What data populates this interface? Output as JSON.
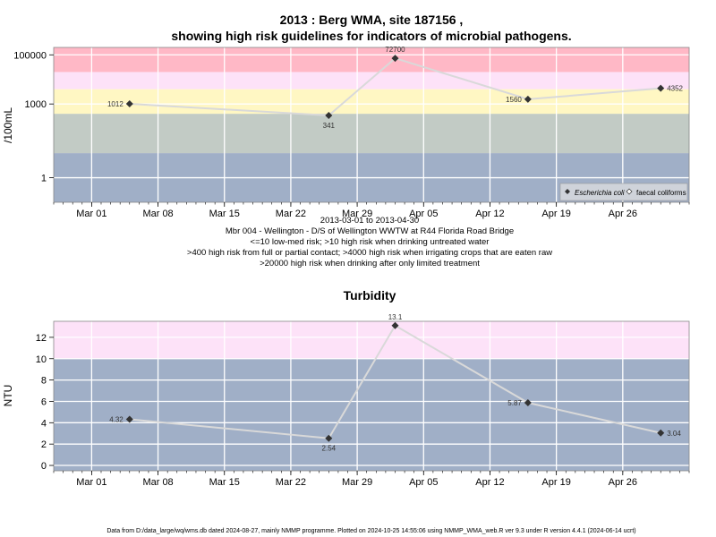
{
  "chart_data": [
    {
      "type": "line",
      "title_line1": "2013 : Berg WMA, site 187156 ,",
      "title_line2": "showing high risk guidelines for indicators of microbial pathogens.",
      "ylabel": "/100mL",
      "y_scale": "log10",
      "ylim": [
        0.1,
        200000
      ],
      "y_ticks": [
        1,
        1000,
        100000
      ],
      "y_tick_labels": [
        "1",
        "1000",
        "100000"
      ],
      "x_ticks": [
        "2013-03-01",
        "2013-03-08",
        "2013-03-15",
        "2013-03-22",
        "2013-03-29",
        "2013-04-05",
        "2013-04-12",
        "2013-04-19",
        "2013-04-26"
      ],
      "x_tick_labels": [
        "Mar 01",
        "Mar 08",
        "Mar 15",
        "Mar 22",
        "Mar 29",
        "Apr 05",
        "Apr 12",
        "Apr 19",
        "Apr 26"
      ],
      "xlim": [
        "2013-02-25",
        "2013-05-03"
      ],
      "grid": true,
      "bands": [
        {
          "from": 0.1,
          "to": 10,
          "color": "#a0afc7"
        },
        {
          "from": 10,
          "to": 400,
          "color": "#c2cbc5"
        },
        {
          "from": 400,
          "to": 4000,
          "color": "#fff7c3"
        },
        {
          "from": 4000,
          "to": 20000,
          "color": "#fde2f8"
        },
        {
          "from": 20000,
          "to": 200000,
          "color": "#ffb8c6"
        }
      ],
      "series": [
        {
          "name": "Escherichia coli",
          "color": "#333333",
          "line_color": "#d9d9d9",
          "marker": "diamond",
          "points": [
            {
              "date": "2013-03-05",
              "value": 1012,
              "label": "1012",
              "label_pos": "left"
            },
            {
              "date": "2013-03-26",
              "value": 341,
              "label": "341",
              "label_pos": "below"
            },
            {
              "date": "2013-04-02",
              "value": 72700,
              "label": "72700",
              "label_pos": "above"
            },
            {
              "date": "2013-04-16",
              "value": 1560,
              "label": "1560",
              "label_pos": "left"
            },
            {
              "date": "2013-04-30",
              "value": 4352,
              "label": "4352",
              "label_pos": "right"
            }
          ]
        }
      ],
      "legend": {
        "position": "bottom-right",
        "entries": [
          {
            "label": "Escherichia coli",
            "marker": "diamond-filled",
            "italic": true
          },
          {
            "label": "faecal coliforms",
            "marker": "diamond-open",
            "italic": false
          }
        ]
      },
      "caption_lines": [
        "2013-03-01 to 2013-04-30",
        "Mbr 004 - Wellington - D/S of Wellington WWTW at R44 Florida Road Bridge",
        "<=10 low-med risk; >10 high risk when drinking untreated water",
        ">400 high risk from full or partial contact; >4000 high risk when irrigating crops that are eaten raw",
        ">20000 high risk when drinking after only limited treatment"
      ]
    },
    {
      "type": "line",
      "title": "Turbidity",
      "ylabel": "NTU",
      "ylim": [
        -0.5,
        13.5
      ],
      "y_ticks": [
        0,
        2,
        4,
        6,
        8,
        10,
        12
      ],
      "y_tick_labels": [
        "0",
        "2",
        "4",
        "6",
        "8",
        "10",
        "12"
      ],
      "x_ticks": [
        "2013-03-01",
        "2013-03-08",
        "2013-03-15",
        "2013-03-22",
        "2013-03-29",
        "2013-04-05",
        "2013-04-12",
        "2013-04-19",
        "2013-04-26"
      ],
      "x_tick_labels": [
        "Mar 01",
        "Mar 08",
        "Mar 15",
        "Mar 22",
        "Mar 29",
        "Apr 05",
        "Apr 12",
        "Apr 19",
        "Apr 26"
      ],
      "xlim": [
        "2013-02-25",
        "2013-05-03"
      ],
      "grid": true,
      "bands": [
        {
          "from": -0.5,
          "to": 10,
          "color": "#a0afc7"
        },
        {
          "from": 10,
          "to": 13.5,
          "color": "#fde2f8"
        }
      ],
      "series": [
        {
          "name": "",
          "color": "#333333",
          "line_color": "#d9d9d9",
          "marker": "diamond",
          "points": [
            {
              "date": "2013-03-05",
              "value": 4.32,
              "label": "4.32",
              "label_pos": "left"
            },
            {
              "date": "2013-03-26",
              "value": 2.54,
              "label": "2.54",
              "label_pos": "below"
            },
            {
              "date": "2013-04-02",
              "value": 13.1,
              "label": "13.1",
              "label_pos": "above"
            },
            {
              "date": "2013-04-16",
              "value": 5.87,
              "label": "5.87",
              "label_pos": "left"
            },
            {
              "date": "2013-04-30",
              "value": 3.04,
              "label": "3.04",
              "label_pos": "right"
            }
          ]
        }
      ]
    }
  ],
  "footer": "Data from D:/data_large/wq/wms.db dated 2024-08-27, mainly NMMP programme. Plotted on 2024-10-25 14:55:06 using NMMP_WMA_web.R ver 9.3 under R version 4.4.1 (2024-06-14 ucrt)"
}
